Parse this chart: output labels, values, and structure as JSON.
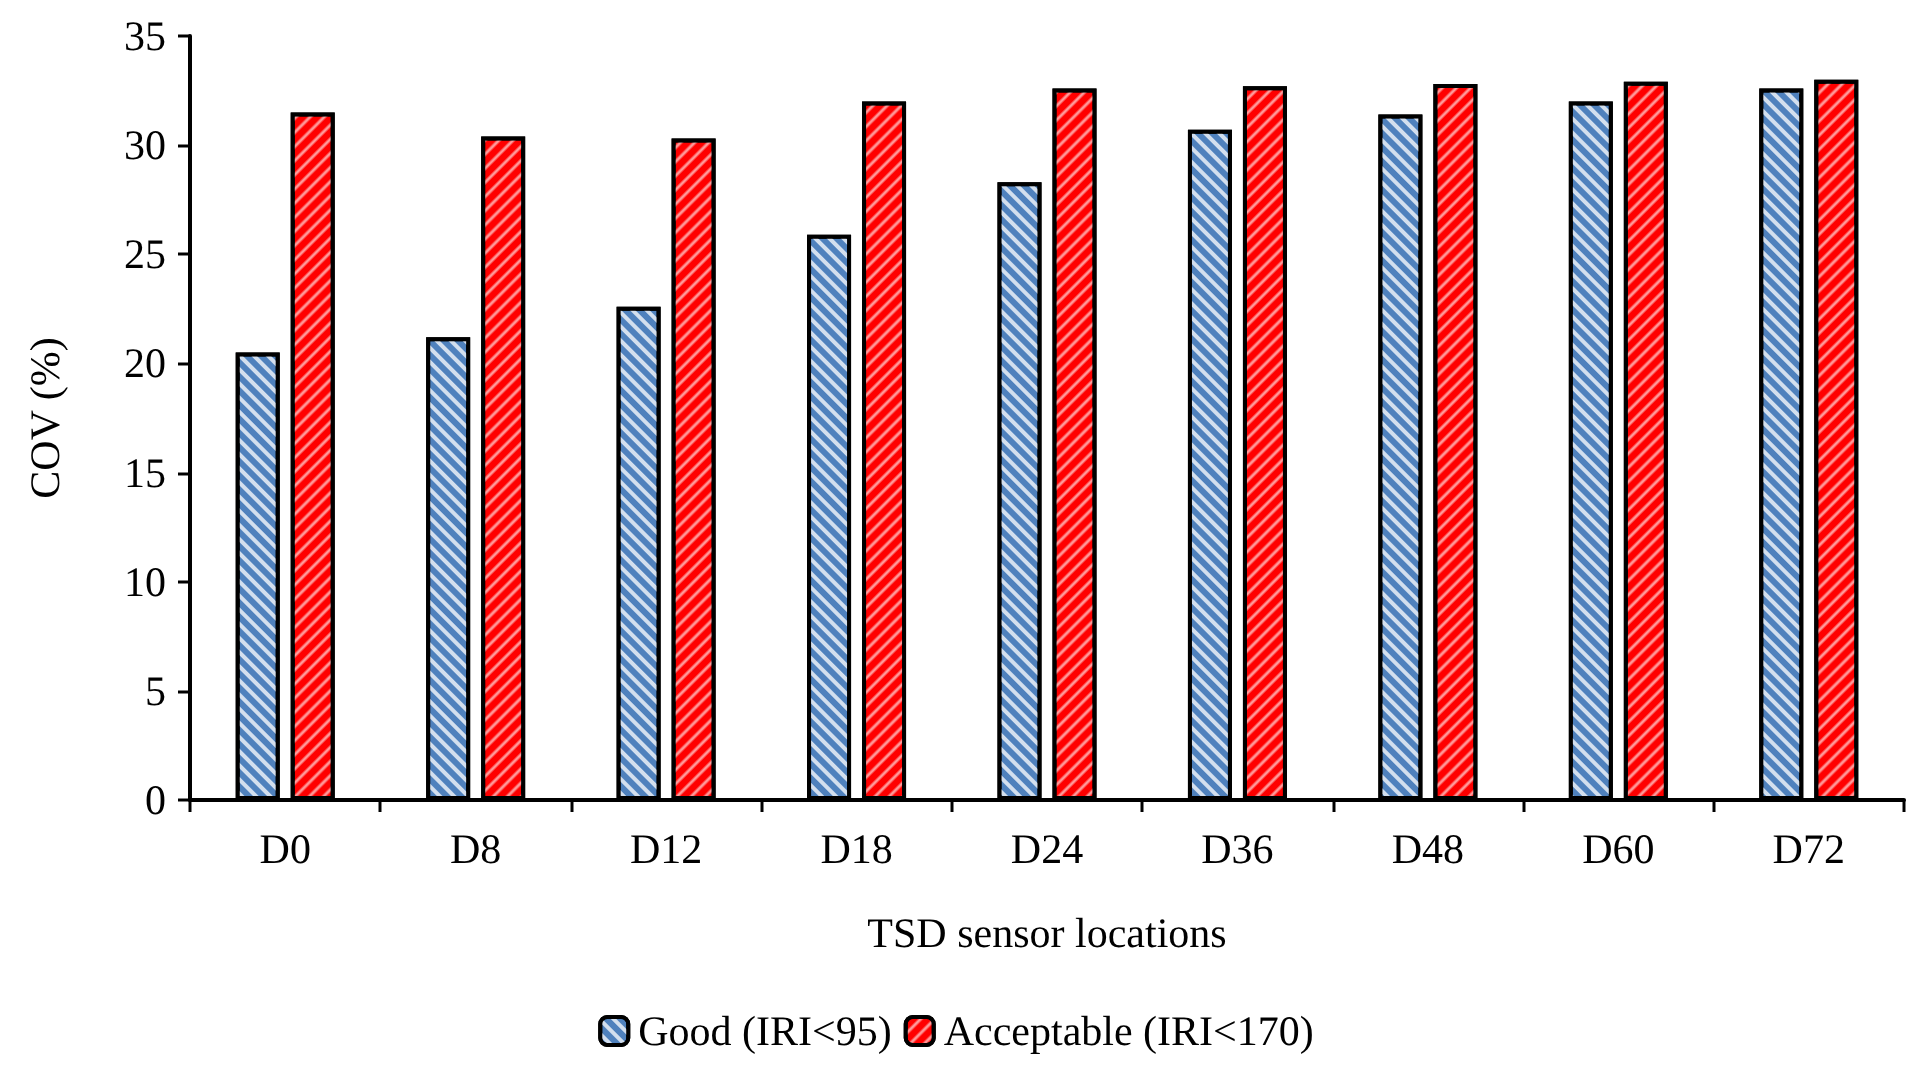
{
  "chart_data": {
    "type": "bar",
    "xlabel": "TSD sensor locations",
    "ylabel": "COV (%)",
    "categories": [
      "D0",
      "D8",
      "D12",
      "D18",
      "D24",
      "D36",
      "D48",
      "D60",
      "D72"
    ],
    "series": [
      {
        "name": "Good (IRI<95)",
        "color": "#4f81bd",
        "values": [
          20.5,
          21.2,
          22.6,
          25.9,
          28.3,
          30.7,
          31.4,
          32.0,
          32.6
        ]
      },
      {
        "name": "Acceptable (IRI<170)",
        "color": "#ff0000",
        "values": [
          31.5,
          30.4,
          30.3,
          32.0,
          32.6,
          32.7,
          32.8,
          32.9,
          33.0
        ]
      }
    ],
    "ylim": [
      0,
      35
    ],
    "yticks": [
      0,
      5,
      10,
      15,
      20,
      25,
      30,
      35
    ],
    "grid": false,
    "legend": "bottom"
  }
}
